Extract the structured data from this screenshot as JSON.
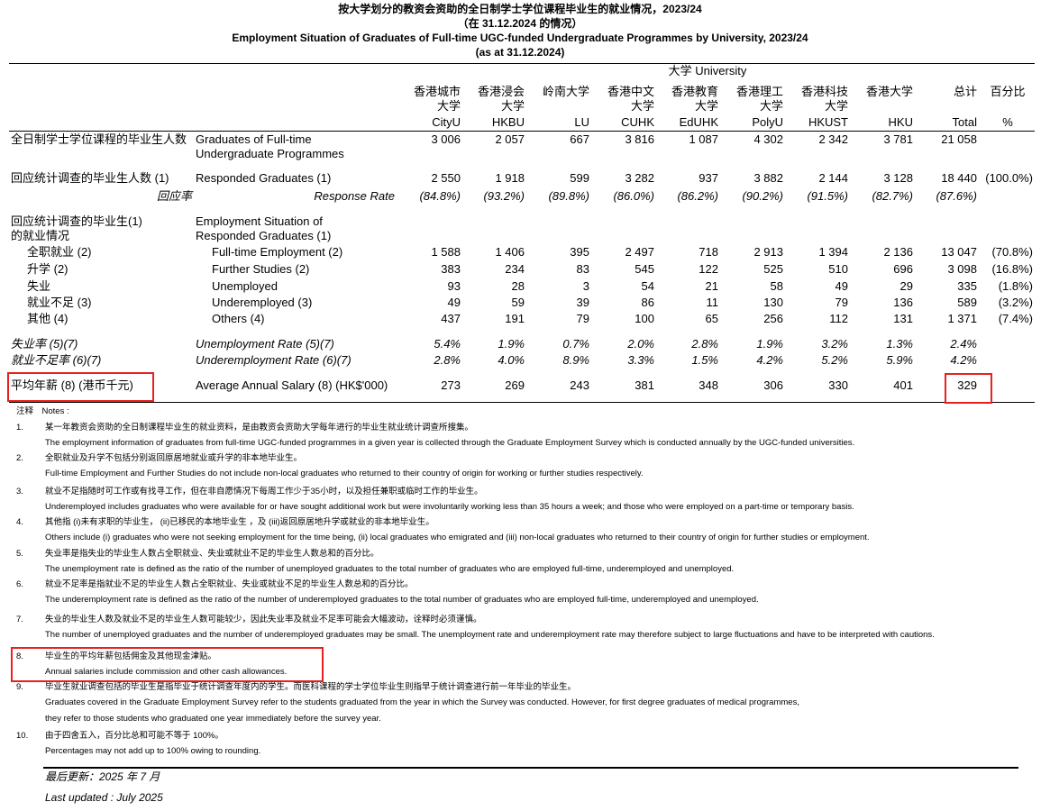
{
  "header": {
    "title_zh": "按大学划分的教资会资助的全日制学士学位课程毕业生的就业情况，2023/24",
    "date_zh": "（在 31.12.2024 的情况）",
    "title_en": "Employment Situation of Graduates of Full-time UGC-funded Undergraduate Programmes by University, 2023/24",
    "date_en": "(as at 31.12.2024)"
  },
  "table": {
    "group_header": "大学 University",
    "columns": [
      {
        "zh": [
          "香港城市",
          "大学"
        ],
        "en": "CityU"
      },
      {
        "zh": [
          "香港浸会",
          "大学"
        ],
        "en": "HKBU"
      },
      {
        "zh": [
          "岭南大学"
        ],
        "en": "LU"
      },
      {
        "zh": [
          "香港中文",
          "大学"
        ],
        "en": "CUHK"
      },
      {
        "zh": [
          "香港教育",
          "大学"
        ],
        "en": "EdUHK"
      },
      {
        "zh": [
          "香港理工",
          "大学"
        ],
        "en": "PolyU"
      },
      {
        "zh": [
          "香港科技",
          "大学"
        ],
        "en": "HKUST"
      },
      {
        "zh": [
          "香港大学"
        ],
        "en": "HKU"
      }
    ],
    "total_header": {
      "zh": "总计",
      "en": "Total"
    },
    "pct_header": {
      "zh": "百分比",
      "en": "%"
    },
    "rows": [
      {
        "zh": "全日制学士学位课程的毕业生人数",
        "en": [
          "Graduates of Full-time",
          "Undergraduate Programmes"
        ],
        "values": [
          "3 006",
          "2 057",
          "667",
          "3 816",
          "1 087",
          "4 302",
          "2 342",
          "3 781"
        ],
        "total": "21 058"
      },
      {
        "zh": "回应统计调查的毕业生人数 (1)",
        "en": "Responded Graduates (1)",
        "values": [
          "2 550",
          "1 918",
          "599",
          "3 282",
          "937",
          "3 882",
          "2 144",
          "3 128"
        ],
        "total": "18 440",
        "pct": "(100.0%)"
      },
      {
        "zh": "回应率",
        "en": "Response Rate",
        "values": [
          "(84.8%)",
          "(93.2%)",
          "(89.8%)",
          "(86.0%)",
          "(86.2%)",
          "(90.2%)",
          "(91.5%)",
          "(82.7%)"
        ],
        "total": "(87.6%)"
      },
      {
        "zh": [
          "回应统计调查的毕业生(1)",
          "的就业情况"
        ],
        "en": [
          "Employment Situation of",
          "Responded Graduates (1)"
        ]
      },
      {
        "zh": "全职就业 (2)",
        "en": "Full-time Employment (2)",
        "values": [
          "1 588",
          "1 406",
          "395",
          "2 497",
          "718",
          "2 913",
          "1 394",
          "2 136"
        ],
        "total": "13 047",
        "pct": "(70.8%)"
      },
      {
        "zh": "升学 (2)",
        "en": "Further Studies (2)",
        "values": [
          "383",
          "234",
          "83",
          "545",
          "122",
          "525",
          "510",
          "696"
        ],
        "total": "3 098",
        "pct": "(16.8%)"
      },
      {
        "zh": "失业",
        "en": "Unemployed",
        "values": [
          "93",
          "28",
          "3",
          "54",
          "21",
          "58",
          "49",
          "29"
        ],
        "total": "335",
        "pct": "(1.8%)"
      },
      {
        "zh": "就业不足 (3)",
        "en": "Underemployed (3)",
        "values": [
          "49",
          "59",
          "39",
          "86",
          "11",
          "130",
          "79",
          "136"
        ],
        "total": "589",
        "pct": "(3.2%)"
      },
      {
        "zh": "其他 (4)",
        "en": "Others (4)",
        "values": [
          "437",
          "191",
          "79",
          "100",
          "65",
          "256",
          "112",
          "131"
        ],
        "total": "1 371",
        "pct": "(7.4%)"
      },
      {
        "zh": "失业率 (5)(7)",
        "en": "Unemployment Rate (5)(7)",
        "values": [
          "5.4%",
          "1.9%",
          "0.7%",
          "2.0%",
          "2.8%",
          "1.9%",
          "3.2%",
          "1.3%"
        ],
        "total": "2.4%"
      },
      {
        "zh": "就业不足率 (6)(7)",
        "en": "Underemployment Rate (6)(7)",
        "values": [
          "2.8%",
          "4.0%",
          "8.9%",
          "3.3%",
          "1.5%",
          "4.2%",
          "5.2%",
          "5.9%"
        ],
        "total": "4.2%"
      },
      {
        "zh": "平均年薪 (8) (港币千元)",
        "en": "Average Annual Salary (8) (HK$'000)",
        "values": [
          "273",
          "269",
          "243",
          "381",
          "348",
          "306",
          "330",
          "401"
        ],
        "total": "329"
      }
    ]
  },
  "notes": {
    "heading": "注释　Notes :",
    "items": [
      {
        "number": "1.",
        "zh": "某一年教资会资助的全日制课程毕业生的就业资料，是由教资会资助大学每年进行的毕业生就业统计调查所搜集。",
        "en": [
          "The employment information of graduates from full-time UGC-funded programmes in a given year is collected through the Graduate Employment Survey which is conducted annually by the UGC-funded universities."
        ]
      },
      {
        "number": "2.",
        "zh": "全职就业及升学不包括分别返回原居地就业或升学的非本地毕业生。",
        "en": [
          "Full-time Employment and Further Studies do not include non-local graduates who returned to their country of origin for working or further studies respectively."
        ]
      },
      {
        "number": "3.",
        "zh": "就业不足指随时可工作或有找寻工作，但在非自愿情况下每周工作少于35小时，以及担任兼职或临时工作的毕业生。",
        "en": [
          "Underemployed includes graduates who were available for or have sought additional work but were involuntarily working less than 35 hours a week; and those who were employed on a part-time or temporary basis."
        ]
      },
      {
        "number": "4.",
        "zh": "其他指 (i)未有求职的毕业生， (ii)已移民的本地毕业生 ，及 (iii)返回原居地升学或就业的非本地毕业生。",
        "en": [
          "Others include (i) graduates who were not seeking employment for the time being, (ii) local graduates who emigrated and (iii) non-local graduates who returned to their country of origin for further studies or employment."
        ]
      },
      {
        "number": "5.",
        "zh": "失业率是指失业的毕业生人数占全职就业、失业或就业不足的毕业生人数总和的百分比。",
        "en": [
          "The unemployment rate is defined as the ratio of the number of unemployed graduates to the total number of graduates who are employed full-time, underemployed and unemployed."
        ]
      },
      {
        "number": "6.",
        "zh": "就业不足率是指就业不足的毕业生人数占全职就业、失业或就业不足的毕业生人数总和的百分比。",
        "en": [
          "The underemployment rate is defined as the ratio of the number of underemployed graduates to the total number of graduates who are employed full-time, underemployed and unemployed."
        ]
      },
      {
        "number": "7.",
        "zh": "失业的毕业生人数及就业不足的毕业生人数可能较少，因此失业率及就业不足率可能会大幅波动，诠释时必须谨慎。",
        "en": [
          "The number of unemployed graduates and the number of underemployed graduates may be small.  The unemployment rate and underemployment rate may therefore subject to large fluctuations and have to be interpreted with cautions."
        ]
      },
      {
        "number": "8.",
        "zh": "毕业生的平均年薪包括佣金及其他现金津贴。",
        "en": [
          "Annual salaries include commission and other cash allowances."
        ]
      },
      {
        "number": "9.",
        "zh": "毕业生就业调查包括的毕业生是指毕业于统计调查年度内的学生。而医科课程的学士学位毕业生则指早于统计调查进行前一年毕业的毕业生。",
        "en": [
          "Graduates covered in the Graduate Employment Survey refer to the students graduated from the year in which the Survey was conducted. However, for first degree graduates of medical programmes,",
          "they refer to those students who graduated one year immediately before the survey year."
        ]
      },
      {
        "number": "10.",
        "zh": "由于四舍五入，百分比总和可能不等于 100%。",
        "en": [
          "Percentages may not add up to 100% owing to rounding."
        ]
      }
    ]
  },
  "footer": {
    "updated_zh": "最后更新：2025 年 7 月",
    "updated_en": "Last updated : July 2025"
  }
}
